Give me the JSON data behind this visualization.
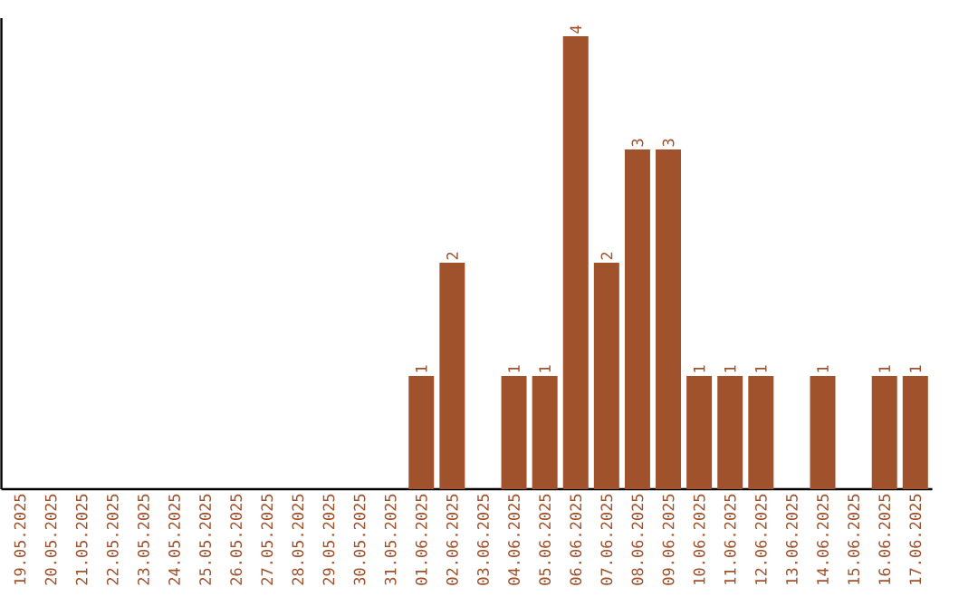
{
  "chart_data": {
    "type": "bar",
    "categories": [
      "19.05.2025",
      "20.05.2025",
      "21.05.2025",
      "22.05.2025",
      "23.05.2025",
      "24.05.2025",
      "25.05.2025",
      "26.05.2025",
      "27.05.2025",
      "28.05.2025",
      "29.05.2025",
      "30.05.2025",
      "31.05.2025",
      "01.06.2025",
      "02.06.2025",
      "03.06.2025",
      "04.06.2025",
      "05.06.2025",
      "06.06.2025",
      "07.06.2025",
      "08.06.2025",
      "09.06.2025",
      "10.06.2025",
      "11.06.2025",
      "12.06.2025",
      "13.06.2025",
      "14.06.2025",
      "15.06.2025",
      "16.06.2025",
      "17.06.2025"
    ],
    "values": [
      null,
      null,
      null,
      null,
      null,
      null,
      null,
      null,
      null,
      null,
      null,
      null,
      null,
      1,
      2,
      null,
      1,
      1,
      4,
      2,
      3,
      3,
      1,
      1,
      1,
      null,
      1,
      null,
      1,
      1
    ],
    "value_labels": [
      null,
      null,
      null,
      null,
      null,
      null,
      null,
      null,
      null,
      null,
      null,
      null,
      null,
      "1",
      "2",
      null,
      "1",
      "1",
      "4",
      "2",
      "3",
      "3",
      "1",
      "1",
      "1",
      null,
      "1",
      null,
      "1",
      "1"
    ],
    "color": "#a0522d",
    "tick_labels": "x",
    "grid": false
  }
}
